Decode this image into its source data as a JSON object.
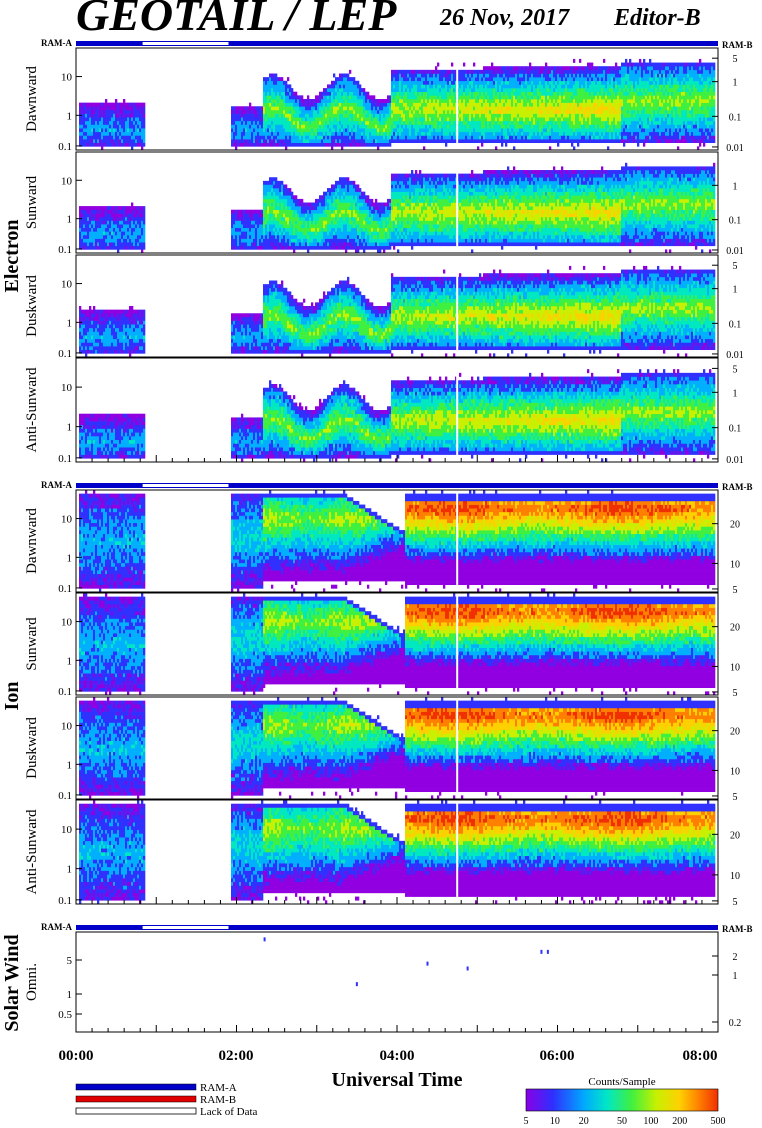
{
  "header": {
    "title": "GEOTAIL / LEP",
    "date": "26 Nov, 2017",
    "editor": "Editor-B"
  },
  "ram_labels": {
    "a": "RAM-A",
    "b": "RAM-B"
  },
  "colors": {
    "ram_a": "#0000c8",
    "ram_b": "#e00000",
    "gap": "#ffffff",
    "colormap": [
      "#9000e0",
      "#3030ff",
      "#00b0ff",
      "#00e8c0",
      "#40f040",
      "#c8f000",
      "#ffd000",
      "#ff8000",
      "#f03000"
    ]
  },
  "chart_data": [
    {
      "type": "heatmap",
      "group": "Electron",
      "xlabel": "Universal Time",
      "x_ticks": [
        "00:00",
        "02:00",
        "04:00",
        "06:00",
        "08:00"
      ],
      "x_range_hours": [
        0,
        8
      ],
      "data_gap_hours": [
        0.83,
        1.9
      ],
      "panels": [
        {
          "name": "Dawnward",
          "left_ticks": [
            "10",
            "1",
            "0.1"
          ],
          "right_ticks": [
            "5",
            "1",
            "0.1",
            "0.01"
          ]
        },
        {
          "name": "Sunward",
          "left_ticks": [
            "10",
            "1",
            "0.1"
          ],
          "right_ticks": [
            "1",
            "0.1",
            "0.01"
          ]
        },
        {
          "name": "Duskward",
          "left_ticks": [
            "10",
            "1",
            "0.1"
          ],
          "right_ticks": [
            "5",
            "1",
            "0.1",
            "0.01"
          ]
        },
        {
          "name": "Anti-Sunward",
          "left_ticks": [
            "10",
            "1",
            "0.1"
          ],
          "right_ticks": [
            "5",
            "1",
            "0.1",
            "0.01"
          ]
        }
      ]
    },
    {
      "type": "heatmap",
      "group": "Ion",
      "xlabel": "Universal Time",
      "x_ticks": [
        "00:00",
        "02:00",
        "04:00",
        "06:00",
        "08:00"
      ],
      "x_range_hours": [
        0,
        8
      ],
      "data_gap_hours": [
        0.83,
        1.9
      ],
      "panels": [
        {
          "name": "Dawnward",
          "left_ticks": [
            "10",
            "1",
            "0.1"
          ],
          "right_ticks": [
            "20",
            "10",
            "5"
          ]
        },
        {
          "name": "Sunward",
          "left_ticks": [
            "10",
            "1",
            "0.1"
          ],
          "right_ticks": [
            "20",
            "10",
            "5"
          ]
        },
        {
          "name": "Duskward",
          "left_ticks": [
            "10",
            "1",
            "0.1"
          ],
          "right_ticks": [
            "20",
            "10",
            "5"
          ]
        },
        {
          "name": "Anti-Sunward",
          "left_ticks": [
            "10",
            "1",
            "0.1"
          ],
          "right_ticks": [
            "20",
            "10",
            "5"
          ]
        }
      ]
    },
    {
      "type": "scatter",
      "group": "Solar Wind",
      "panel_name": "Omni.",
      "left_ticks": [
        "5",
        "1",
        "0.5"
      ],
      "right_ticks": [
        "2",
        "1",
        "0.2"
      ],
      "points": [
        {
          "x_hours": 2.35,
          "y": 7.5
        },
        {
          "x_hours": 3.5,
          "y": 1.3
        },
        {
          "x_hours": 4.38,
          "y": 2.9
        },
        {
          "x_hours": 4.88,
          "y": 2.4
        },
        {
          "x_hours": 5.8,
          "y": 4.6
        },
        {
          "x_hours": 5.88,
          "y": 4.6
        }
      ]
    }
  ],
  "x_axis": {
    "ticks": [
      "00:00",
      "02:00",
      "04:00",
      "06:00",
      "08:00"
    ],
    "label": "Universal Time"
  },
  "legend": {
    "items": [
      "RAM-A",
      "RAM-B",
      "Lack of Data"
    ],
    "colorbar_title": "Counts/Sample",
    "colorbar_ticks": [
      "5",
      "10",
      "20",
      "50",
      "100",
      "200",
      "500"
    ]
  }
}
